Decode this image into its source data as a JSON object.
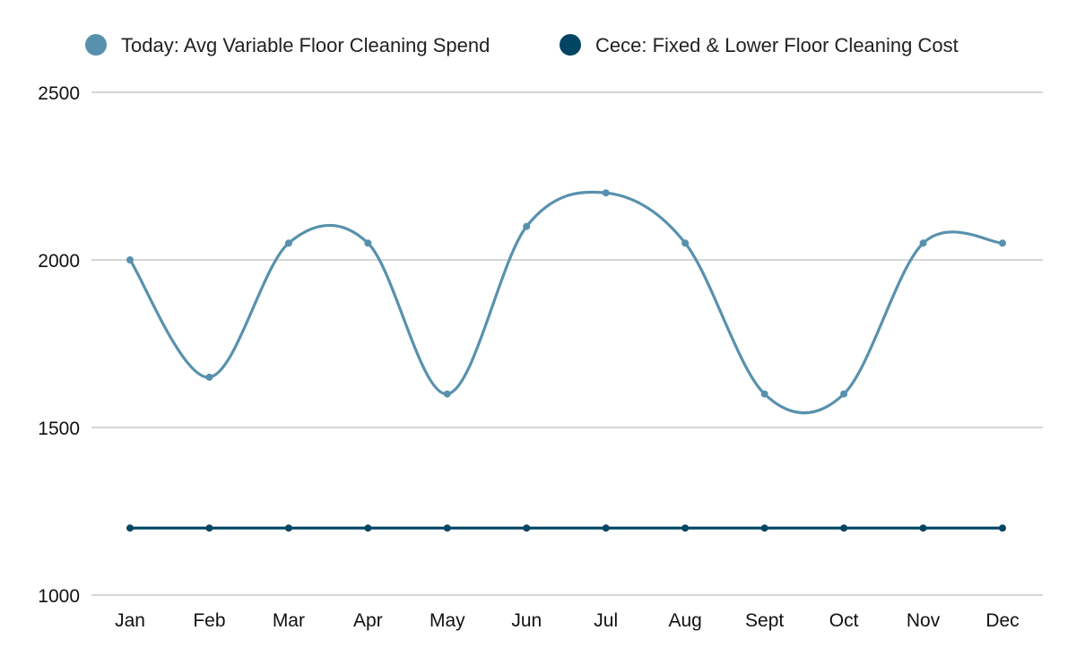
{
  "chart_data": {
    "type": "line",
    "title": "",
    "xlabel": "",
    "ylabel": "",
    "categories": [
      "Jan",
      "Feb",
      "Mar",
      "Apr",
      "May",
      "Jun",
      "Jul",
      "Aug",
      "Sept",
      "Oct",
      "Nov",
      "Dec"
    ],
    "yticks": [
      "1000",
      "1500",
      "2000",
      "2500"
    ],
    "ylim": [
      1000,
      2500
    ],
    "grid": true,
    "legend_position": "top",
    "series": [
      {
        "name": "Today: Avg Variable Floor Cleaning Spend",
        "color": "#5891ad",
        "smooth": true,
        "values": [
          2000,
          1650,
          2050,
          2050,
          1600,
          2100,
          2200,
          2050,
          1600,
          1600,
          2050,
          2050
        ]
      },
      {
        "name": "Cece: Fixed & Lower Floor Cleaning Cost",
        "color": "#004563",
        "smooth": false,
        "values": [
          1200,
          1200,
          1200,
          1200,
          1200,
          1200,
          1200,
          1200,
          1200,
          1200,
          1200,
          1200
        ]
      }
    ]
  }
}
